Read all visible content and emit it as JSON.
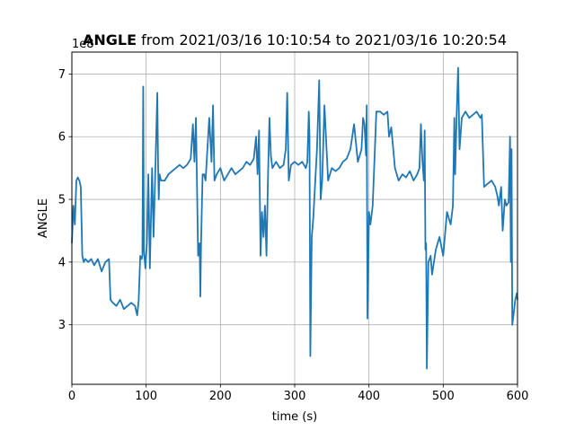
{
  "chart_data": {
    "type": "line",
    "title_bold": "ANGLE",
    "title_rest": " from 2021/03/16 10:10:54 to 2021/03/16 10:20:54",
    "offset_label": "1e8",
    "xlabel": "time (s)",
    "ylabel": "ANGLE",
    "xlim": [
      0,
      600
    ],
    "ylim": [
      2.05,
      7.35
    ],
    "y_scale_note": "values × 1e8",
    "x_ticks": [
      0,
      100,
      200,
      300,
      400,
      500,
      600
    ],
    "y_ticks": [
      3,
      4,
      5,
      6,
      7
    ],
    "grid": true,
    "line_color": "#1f77b4",
    "series": [
      {
        "x": [
          0,
          2,
          4,
          6,
          8,
          10,
          12,
          14,
          16,
          18,
          22,
          26,
          30,
          35,
          40,
          45,
          50,
          52,
          55,
          60,
          65,
          70,
          75,
          80,
          85,
          88,
          90,
          92,
          94,
          95,
          96,
          97,
          99,
          101,
          103,
          105,
          108,
          110,
          112,
          115,
          116,
          117,
          118,
          120,
          125,
          130,
          135,
          140,
          145,
          150,
          155,
          160,
          163,
          165,
          167,
          170,
          172,
          173,
          174,
          176,
          178,
          180,
          185,
          188,
          190,
          192,
          195,
          200,
          205,
          210,
          215,
          220,
          225,
          230,
          235,
          240,
          245,
          248,
          250,
          252,
          254,
          256,
          258,
          260,
          262,
          264,
          266,
          268,
          270,
          275,
          280,
          285,
          288,
          290,
          292,
          295,
          300,
          305,
          310,
          315,
          317,
          319,
          320,
          321,
          323,
          325,
          330,
          333,
          335,
          337,
          340,
          345,
          350,
          355,
          360,
          365,
          370,
          375,
          380,
          385,
          390,
          392,
          394,
          396,
          397,
          398,
          400,
          402,
          405,
          410,
          415,
          420,
          425,
          427,
          430,
          435,
          440,
          445,
          450,
          455,
          460,
          465,
          468,
          470,
          472,
          474,
          475,
          476,
          477,
          478,
          480,
          483,
          485,
          490,
          495,
          500,
          505,
          510,
          513,
          515,
          516,
          518,
          520,
          522,
          525,
          530,
          535,
          540,
          545,
          550,
          552,
          555,
          560,
          565,
          570,
          573,
          575,
          578,
          580,
          583,
          585,
          588,
          590,
          591,
          592,
          593,
          595,
          597,
          599,
          600
        ],
        "values": [
          4.3,
          4.9,
          4.6,
          5.3,
          5.35,
          5.3,
          5.2,
          4.1,
          4.0,
          4.05,
          4.0,
          4.05,
          3.95,
          4.05,
          3.85,
          4.0,
          4.05,
          3.4,
          3.35,
          3.3,
          3.4,
          3.25,
          3.3,
          3.35,
          3.3,
          3.15,
          3.4,
          4.1,
          4.05,
          4.1,
          6.8,
          4.2,
          3.9,
          4.3,
          5.4,
          3.9,
          5.5,
          4.4,
          5.3,
          6.7,
          5.6,
          5.0,
          5.4,
          5.3,
          5.3,
          5.4,
          5.45,
          5.5,
          5.55,
          5.5,
          5.55,
          5.65,
          6.2,
          5.6,
          6.3,
          4.1,
          4.3,
          3.45,
          4.3,
          5.4,
          5.4,
          5.3,
          6.3,
          5.6,
          6.5,
          5.3,
          5.4,
          5.5,
          5.3,
          5.4,
          5.5,
          5.4,
          5.45,
          5.5,
          5.6,
          5.55,
          5.65,
          6.0,
          5.4,
          6.1,
          4.1,
          4.8,
          4.4,
          4.9,
          4.1,
          5.3,
          6.3,
          5.7,
          5.5,
          5.6,
          5.5,
          5.55,
          5.8,
          6.7,
          5.3,
          5.55,
          5.6,
          5.55,
          5.6,
          5.5,
          5.6,
          6.4,
          6.0,
          2.5,
          4.4,
          4.7,
          5.8,
          6.9,
          5.0,
          5.3,
          6.5,
          5.3,
          5.5,
          5.45,
          5.5,
          5.6,
          5.65,
          5.8,
          6.2,
          5.6,
          5.8,
          6.3,
          6.2,
          5.7,
          6.5,
          3.1,
          4.8,
          4.6,
          4.9,
          6.4,
          6.4,
          6.35,
          6.4,
          6.0,
          6.15,
          5.5,
          5.3,
          5.4,
          5.35,
          5.45,
          5.3,
          5.4,
          5.5,
          6.2,
          5.6,
          5.3,
          6.1,
          4.2,
          4.3,
          2.3,
          4.0,
          4.1,
          3.8,
          4.2,
          4.4,
          4.1,
          4.8,
          4.6,
          4.9,
          6.3,
          5.4,
          6.3,
          7.1,
          5.8,
          6.3,
          6.4,
          6.3,
          6.35,
          6.4,
          6.3,
          6.35,
          5.2,
          5.25,
          5.3,
          5.2,
          5.05,
          4.9,
          5.2,
          4.5,
          5.0,
          4.9,
          4.95,
          6.0,
          4.0,
          5.8,
          3.0,
          3.2,
          3.4,
          3.5,
          3.4
        ]
      }
    ]
  }
}
